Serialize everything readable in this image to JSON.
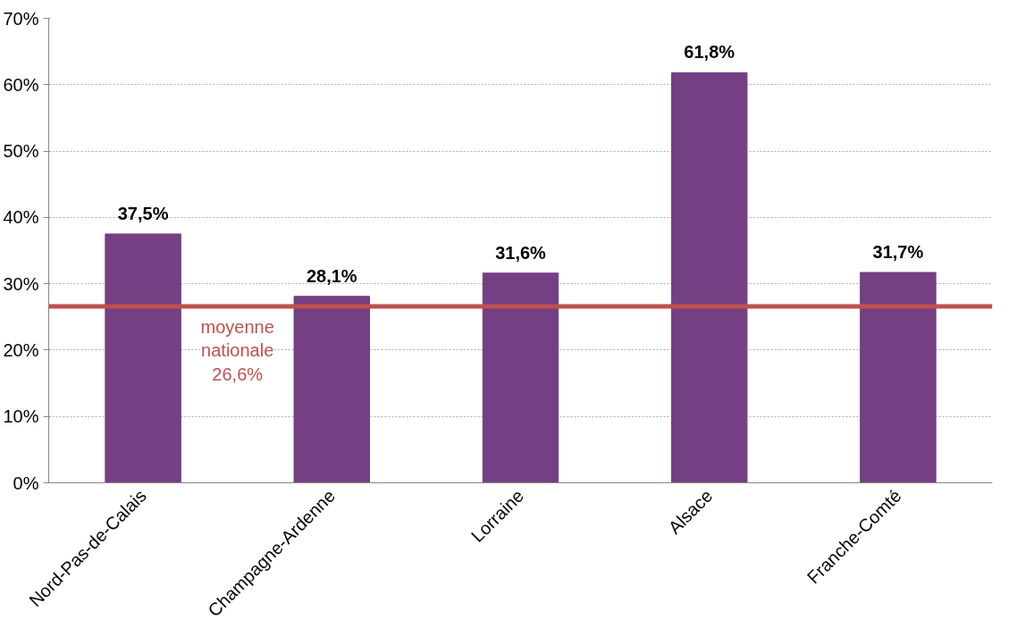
{
  "chart_data": {
    "type": "bar",
    "categories": [
      "Nord-Pas-de-Calais",
      "Champagne-Ardenne",
      "Lorraine",
      "Alsace",
      "Franche-Comté"
    ],
    "values": [
      37.5,
      28.1,
      31.6,
      61.8,
      31.7
    ],
    "value_labels": [
      "37,5%",
      "28,1%",
      "31,6%",
      "61,8%",
      "31,7%"
    ],
    "color": "#743f83",
    "ylim": [
      0,
      70
    ],
    "yticks": [
      {
        "value": 0,
        "label": "0%"
      },
      {
        "value": 10,
        "label": "10%"
      },
      {
        "value": 20,
        "label": "20%"
      },
      {
        "value": 30,
        "label": "30%"
      },
      {
        "value": 40,
        "label": "40%"
      },
      {
        "value": 50,
        "label": "50%"
      },
      {
        "value": 60,
        "label": "60%"
      },
      {
        "value": 70,
        "label": "70%"
      }
    ],
    "grid": "y",
    "ref_lines": [
      {
        "axis": "y",
        "value": 26.6,
        "label": "moyenne\nnationale\n26,6%",
        "color": "#c0504d"
      }
    ]
  }
}
